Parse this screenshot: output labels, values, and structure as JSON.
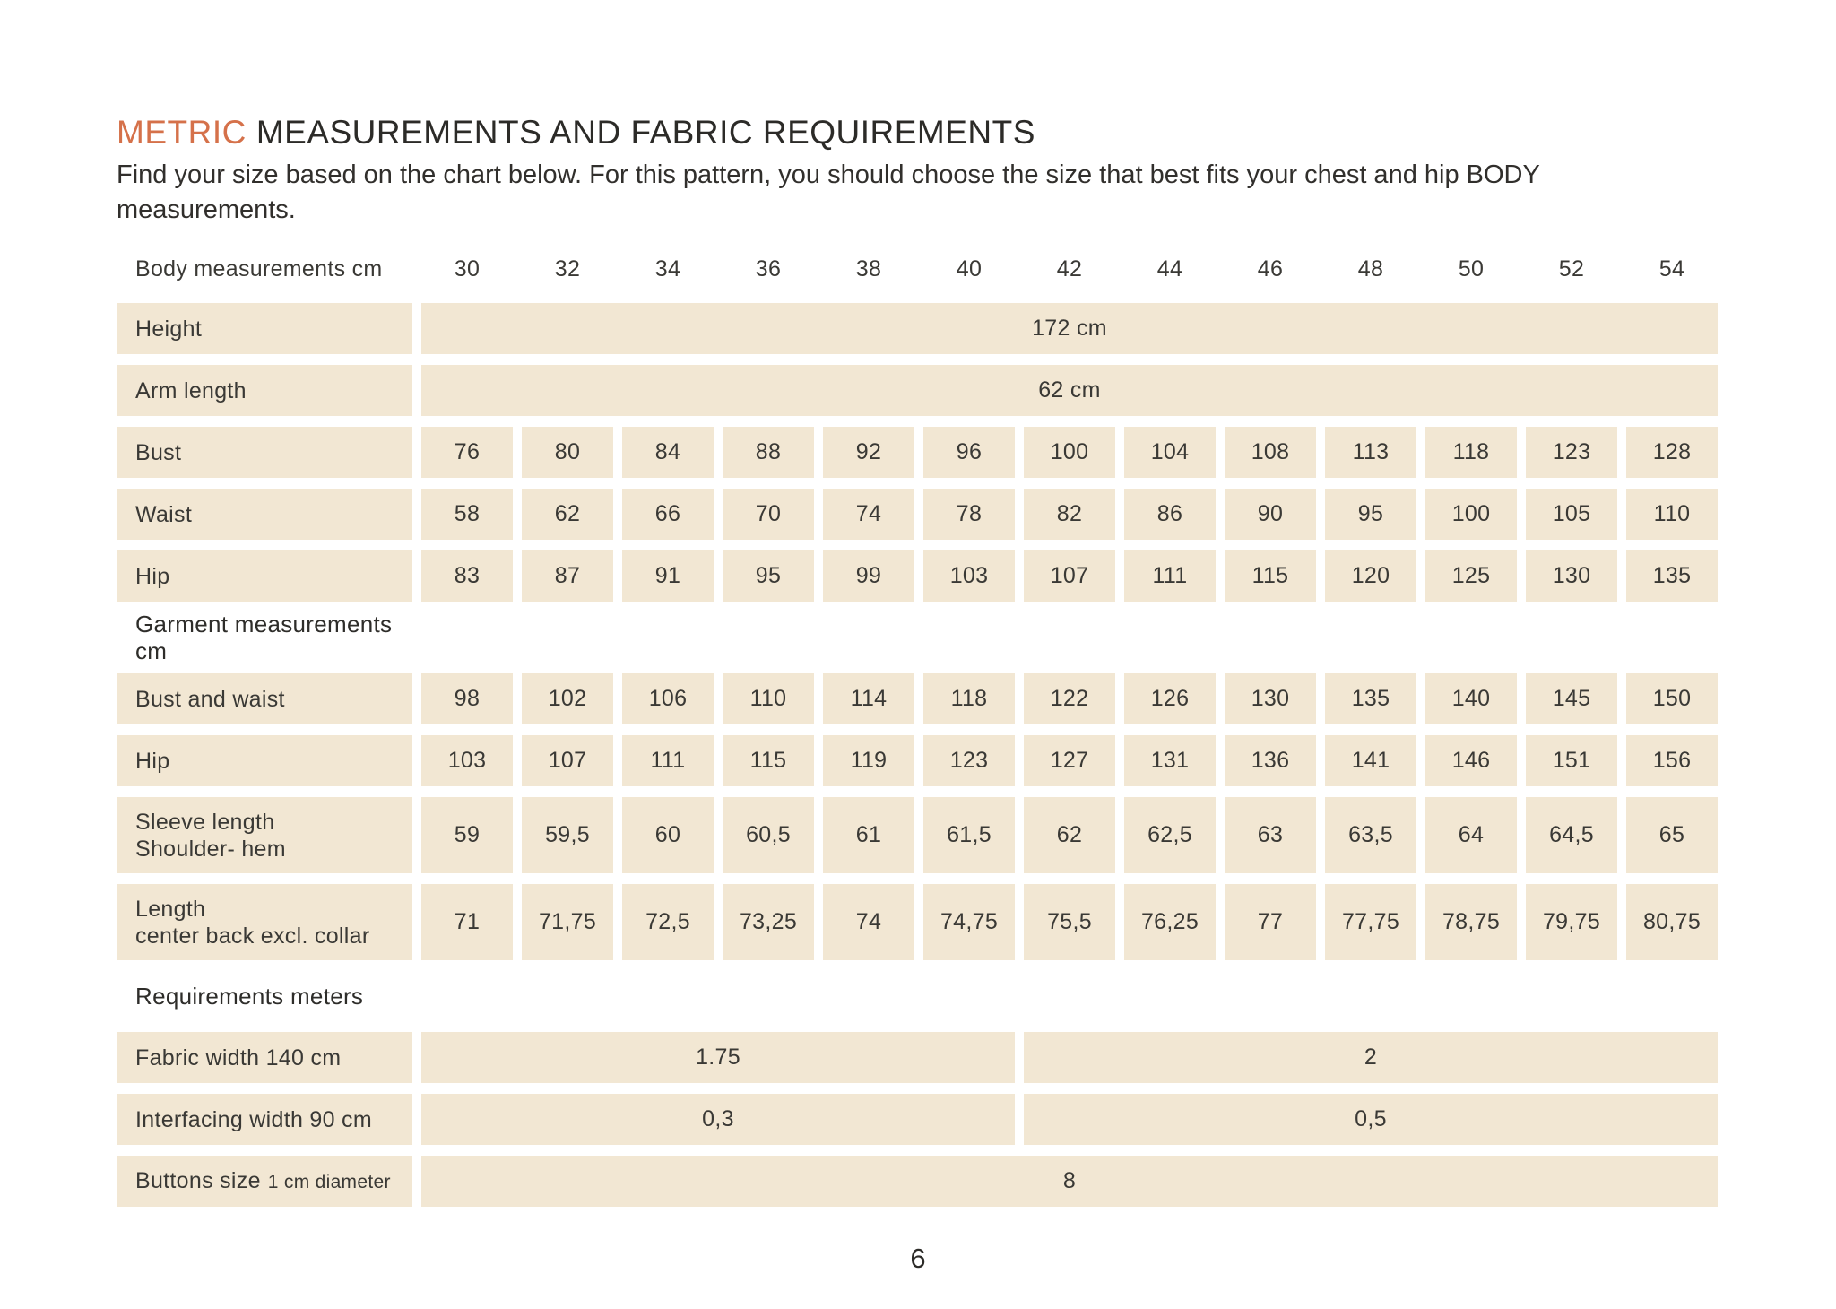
{
  "header": {
    "title_highlight": "METRIC",
    "title_rest": "MEASUREMENTS AND FABRIC REQUIREMENTS",
    "subtitle_line1": "Find your size based on the chart below. For this pattern, you should choose the size that best fits your chest and hip BODY",
    "subtitle_line2": "measurements."
  },
  "colors": {
    "accent_orange": "#d5714a",
    "cell_beige": "#f2e7d3",
    "text_dark": "#2c2b28"
  },
  "size_table": {
    "sizes": [
      "30",
      "32",
      "34",
      "36",
      "38",
      "40",
      "42",
      "44",
      "46",
      "48",
      "50",
      "52",
      "54"
    ],
    "rows": [
      {
        "type": "header",
        "label": "Body measurements cm"
      },
      {
        "type": "span",
        "label": "Height",
        "value": "172 cm"
      },
      {
        "type": "span",
        "label": "Arm length",
        "value": "62 cm"
      },
      {
        "type": "values",
        "label": "Bust",
        "values": [
          "76",
          "80",
          "84",
          "88",
          "92",
          "96",
          "100",
          "104",
          "108",
          "113",
          "118",
          "123",
          "128"
        ]
      },
      {
        "type": "values",
        "label": "Waist",
        "values": [
          "58",
          "62",
          "66",
          "70",
          "74",
          "78",
          "82",
          "86",
          "90",
          "95",
          "100",
          "105",
          "110"
        ]
      },
      {
        "type": "values",
        "label": "Hip",
        "values": [
          "83",
          "87",
          "91",
          "95",
          "99",
          "103",
          "107",
          "111",
          "115",
          "120",
          "125",
          "130",
          "135"
        ]
      },
      {
        "type": "section",
        "label": "Garment measurements cm"
      },
      {
        "type": "values",
        "label": "Bust and waist",
        "values": [
          "98",
          "102",
          "106",
          "110",
          "114",
          "118",
          "122",
          "126",
          "130",
          "135",
          "140",
          "145",
          "150"
        ]
      },
      {
        "type": "values",
        "label": "Hip",
        "values": [
          "103",
          "107",
          "111",
          "115",
          "119",
          "123",
          "127",
          "131",
          "136",
          "141",
          "146",
          "151",
          "156"
        ]
      },
      {
        "type": "values",
        "tall": true,
        "label": "Sleeve length",
        "label2": "Shoulder- hem",
        "values": [
          "59",
          "59,5",
          "60",
          "60,5",
          "61",
          "61,5",
          "62",
          "62,5",
          "63",
          "63,5",
          "64",
          "64,5",
          "65"
        ]
      },
      {
        "type": "values",
        "tall": true,
        "label": "Length",
        "label2": "center back excl. collar",
        "values": [
          "71",
          "71,75",
          "72,5",
          "73,25",
          "74",
          "74,75",
          "75,5",
          "76,25",
          "77",
          "77,75",
          "78,75",
          "79,75",
          "80,75"
        ]
      },
      {
        "type": "section",
        "label": "Requirements meters"
      },
      {
        "type": "split",
        "label": "Fabric width 140 cm",
        "left": "1.75",
        "right": "2"
      },
      {
        "type": "split",
        "label": "Interfacing width 90 cm",
        "left": "0,3",
        "right": "0,5"
      },
      {
        "type": "span",
        "label": "Buttons size",
        "label_small": "1 cm diameter",
        "value": "8"
      }
    ]
  },
  "footer": {
    "page_number": "6"
  }
}
